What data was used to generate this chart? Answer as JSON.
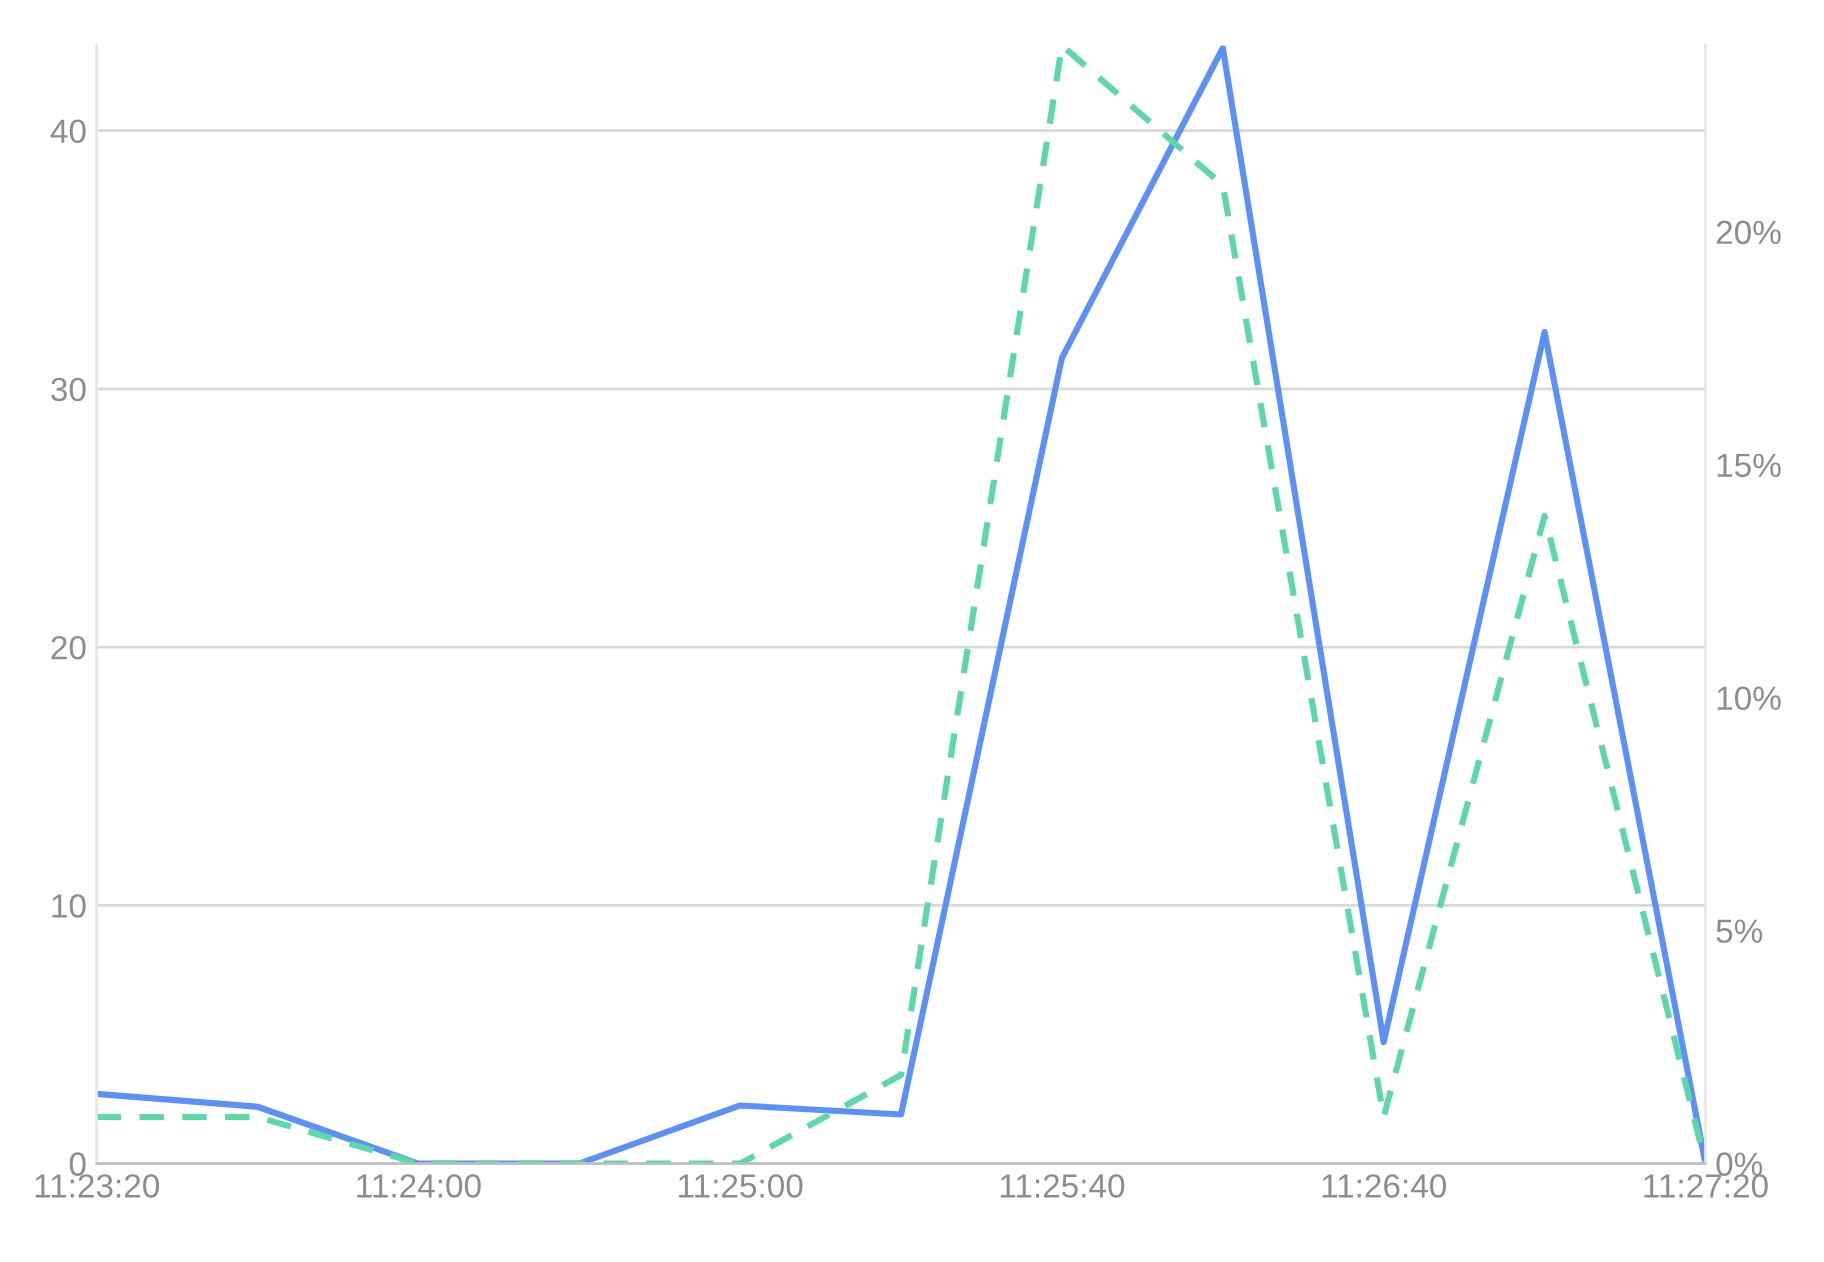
{
  "chart_data": {
    "type": "line",
    "categories": [
      "11:23:20",
      null,
      "11:24:00",
      null,
      "11:25:00",
      null,
      "11:25:40",
      null,
      "11:26:40",
      null,
      "11:27:20"
    ],
    "series": [
      {
        "color": "#5b8ff9",
        "line_style": "solid",
        "values": [
          2.7,
          2.2,
          0,
          0,
          2.25,
          1.9,
          31.2,
          43.2,
          4.7,
          32.2,
          0
        ]
      },
      {
        "color": "#5ad8a6",
        "line_style": "dashed",
        "axis": "y2",
        "values": [
          1.0,
          1.0,
          0,
          0,
          0,
          1.9,
          24.0,
          21.0,
          1.0,
          13.9,
          0
        ]
      }
    ],
    "ylim": [
      0,
      43.3
    ],
    "yticks": [
      0,
      10,
      20,
      30,
      40
    ],
    "y2lim": [
      0,
      24.0
    ],
    "y2ticks": [
      {
        "value": 0,
        "label": "0%"
      },
      {
        "value": 5,
        "label": "5%"
      },
      {
        "value": 10,
        "label": "10%"
      },
      {
        "value": 15,
        "label": "15%"
      },
      {
        "value": 20,
        "label": "20%"
      }
    ],
    "grid": "y",
    "marker": "none",
    "legend": false
  }
}
